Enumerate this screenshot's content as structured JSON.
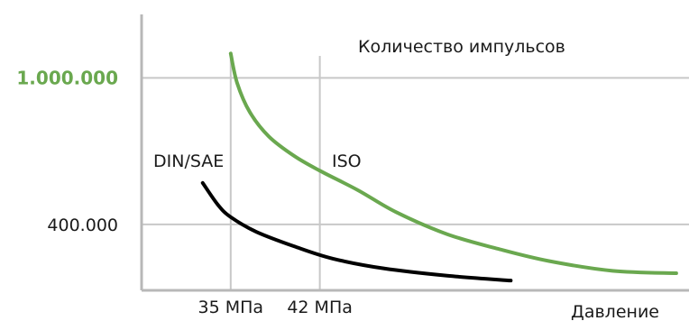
{
  "chart_data": {
    "type": "line",
    "title": "",
    "axis_title_top": "Количество импульсов",
    "xlabel": "Давление",
    "ylabel": "",
    "grid": true,
    "x_ticks": [
      {
        "value": 35,
        "label": "35 МПа"
      },
      {
        "value": 42,
        "label": "42 МПа"
      }
    ],
    "y_ticks": [
      {
        "value": 400000,
        "label": "400.000",
        "color": "#1a1a1a"
      },
      {
        "value": 1000000,
        "label": "1.000.000",
        "color": "#6aa84f"
      }
    ],
    "xlim": [
      28,
      71
    ],
    "ylim": [
      130000,
      1260000
    ],
    "series": [
      {
        "name": "DIN/SAE",
        "color": "#000000",
        "x": [
          32.8,
          34,
          35,
          37,
          40,
          43,
          47,
          52,
          57
        ],
        "y": [
          570000,
          480000,
          430000,
          370000,
          310000,
          260000,
          220000,
          190000,
          170000
        ]
      },
      {
        "name": "ISO",
        "color": "#6aa84f",
        "x": [
          35,
          35.5,
          36.5,
          38,
          40,
          42,
          45,
          48,
          52,
          56,
          60,
          65,
          70
        ],
        "y": [
          1100000,
          980000,
          860000,
          760000,
          680000,
          620000,
          540000,
          450000,
          360000,
          300000,
          250000,
          210000,
          200000
        ]
      }
    ]
  }
}
